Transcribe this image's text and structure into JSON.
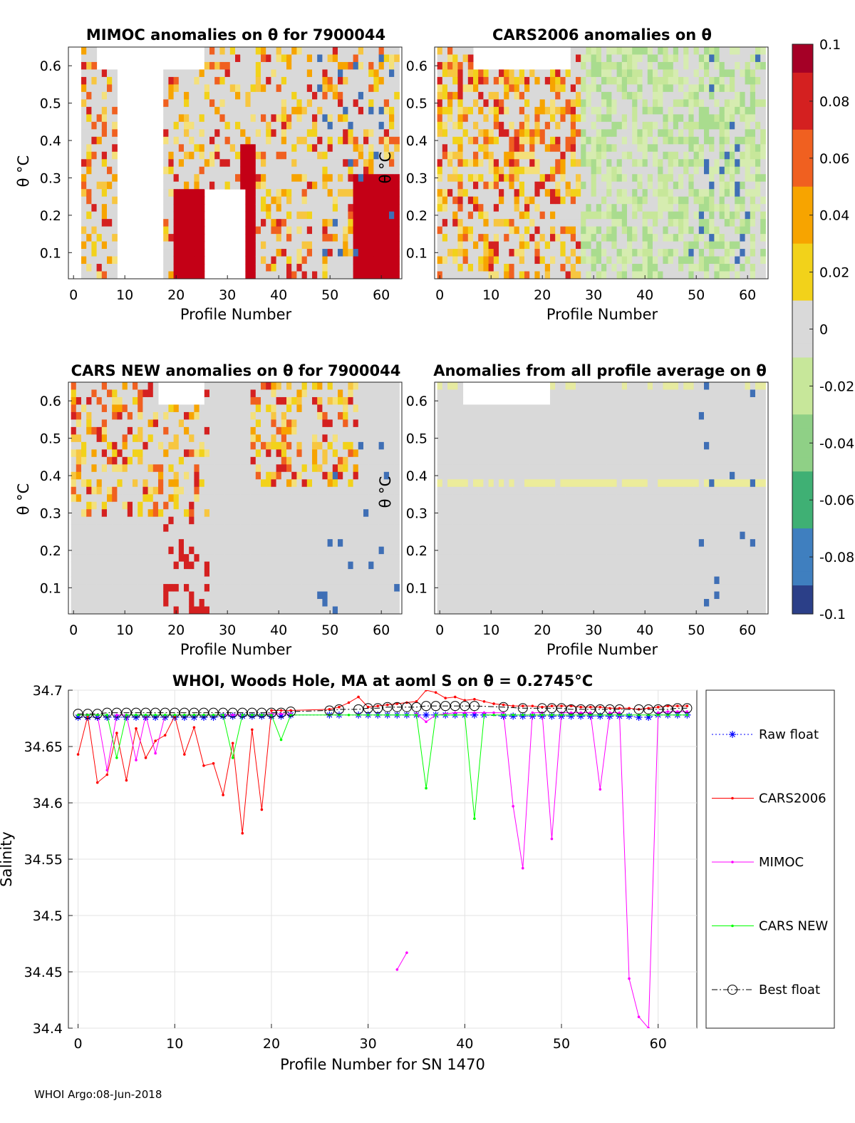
{
  "figure": {
    "footer": "WHOI Argo:08-Jun-2018"
  },
  "colorbar": {
    "ticks": [
      "0.1",
      "0.08",
      "0.06",
      "0.04",
      "0.02",
      "0",
      "-0.02",
      "-0.04",
      "-0.06",
      "-0.08",
      "-0.1"
    ],
    "colors": [
      "#a50026",
      "#d42020",
      "#f06020",
      "#f7a400",
      "#f2d21a",
      "#d9d9d9",
      "#c7e79a",
      "#8fd086",
      "#3fb074",
      "#3f7fbf",
      "#2b3f88"
    ]
  },
  "panels": {
    "mimoc": {
      "title": "MIMOC anomalies on θ  for 7900044",
      "ylabel": "θ °C",
      "xlabel": "Profile Number",
      "xticks": [
        "0",
        "10",
        "20",
        "30",
        "40",
        "50",
        "60"
      ],
      "yticks": [
        "0.6",
        "0.5",
        "0.4",
        "0.3",
        "0.2",
        "0.1"
      ]
    },
    "cars2006": {
      "title": "CARS2006 anomalies on θ",
      "ylabel": "θ °C",
      "xlabel": "Profile Number",
      "xticks": [
        "0",
        "10",
        "20",
        "30",
        "40",
        "50",
        "60"
      ],
      "yticks": [
        "0.6",
        "0.5",
        "0.4",
        "0.3",
        "0.2",
        "0.1"
      ]
    },
    "carsnew": {
      "title": "CARS NEW anomalies on θ for 7900044",
      "ylabel": "θ °C",
      "xlabel": "Profile Number",
      "xticks": [
        "0",
        "10",
        "20",
        "30",
        "40",
        "50",
        "60"
      ],
      "yticks": [
        "0.6",
        "0.5",
        "0.4",
        "0.3",
        "0.2",
        "0.1"
      ]
    },
    "allavg": {
      "title": "Anomalies from all profile average on θ",
      "ylabel": "θ °C",
      "xlabel": "Profile Number",
      "xticks": [
        "0",
        "10",
        "20",
        "30",
        "40",
        "50",
        "60"
      ],
      "yticks": [
        "0.6",
        "0.5",
        "0.4",
        "0.3",
        "0.2",
        "0.1"
      ]
    }
  },
  "chart_data": {
    "type": "line",
    "title": "WHOI, Woods Hole, MA at aoml S on θ = 0.2745°C",
    "xlabel": "Profile Number for SN 1470",
    "ylabel": "Salinity",
    "xlim": [
      -1,
      64
    ],
    "ylim": [
      34.4,
      34.7
    ],
    "xticks": [
      "0",
      "10",
      "20",
      "30",
      "40",
      "50",
      "60"
    ],
    "yticks": [
      "34.7",
      "34.65",
      "34.6",
      "34.55",
      "34.5",
      "34.45",
      "34.4"
    ],
    "series": [
      {
        "name": "Raw float",
        "color": "#0000ff",
        "style": "dotted",
        "marker": "star",
        "x": [
          0,
          1,
          2,
          3,
          4,
          5,
          6,
          7,
          8,
          9,
          10,
          11,
          12,
          13,
          14,
          15,
          16,
          17,
          18,
          19,
          20,
          21,
          22,
          26,
          27,
          29,
          30,
          31,
          32,
          33,
          34,
          35,
          36,
          37,
          38,
          39,
          40,
          41,
          42,
          44,
          45,
          46,
          47,
          48,
          49,
          50,
          51,
          52,
          53,
          54,
          55,
          56,
          57,
          58,
          59,
          60,
          61,
          62,
          63
        ],
        "y": [
          34.676,
          34.676,
          34.676,
          34.676,
          34.676,
          34.676,
          34.676,
          34.676,
          34.676,
          34.676,
          34.676,
          34.676,
          34.676,
          34.676,
          34.676,
          34.677,
          34.677,
          34.677,
          34.677,
          34.677,
          34.677,
          34.677,
          34.678,
          34.678,
          34.678,
          34.678,
          34.678,
          34.678,
          34.678,
          34.678,
          34.678,
          34.678,
          34.678,
          34.678,
          34.678,
          34.678,
          34.678,
          34.678,
          34.678,
          34.677,
          34.677,
          34.677,
          34.677,
          34.677,
          34.677,
          34.677,
          34.677,
          34.677,
          34.677,
          34.677,
          34.677,
          34.677,
          34.677,
          34.676,
          34.676,
          34.678,
          34.678,
          34.678,
          34.678
        ]
      },
      {
        "name": "CARS2006",
        "color": "#ff0000",
        "style": "solid",
        "marker": "dot",
        "x": [
          0,
          1,
          2,
          3,
          4,
          5,
          6,
          7,
          8,
          9,
          10,
          11,
          12,
          13,
          14,
          15,
          16,
          17,
          18,
          19,
          20,
          21,
          22,
          26,
          27,
          28,
          29,
          30,
          31,
          32,
          33,
          34,
          35,
          36,
          37,
          38,
          39,
          40,
          41,
          42,
          43,
          44,
          45,
          46,
          47,
          48,
          49,
          50,
          51,
          52,
          53,
          54,
          55,
          56,
          57,
          58,
          59,
          60,
          61,
          62,
          63
        ],
        "y": [
          34.643,
          34.677,
          34.618,
          34.625,
          34.662,
          34.62,
          34.666,
          34.64,
          34.655,
          34.66,
          34.677,
          34.643,
          34.667,
          34.633,
          34.635,
          34.607,
          34.653,
          34.573,
          34.665,
          34.594,
          34.682,
          34.682,
          34.682,
          34.683,
          34.685,
          34.689,
          34.694,
          34.685,
          34.686,
          34.687,
          34.688,
          34.689,
          34.69,
          34.7,
          34.698,
          34.693,
          34.694,
          34.691,
          34.692,
          34.69,
          34.688,
          34.687,
          34.686,
          34.686,
          34.686,
          34.685,
          34.686,
          34.686,
          34.686,
          34.685,
          34.685,
          34.685,
          34.684,
          34.684,
          34.684,
          34.683,
          34.684,
          34.685,
          34.686,
          34.686,
          34.686
        ]
      },
      {
        "name": "MIMOC",
        "color": "#ff00ff",
        "style": "solid",
        "marker": "dot",
        "x": [
          0,
          1,
          2,
          3,
          4,
          5,
          6,
          7,
          8,
          9,
          10,
          11,
          12,
          13,
          14,
          15,
          16,
          17,
          18,
          19,
          20,
          21,
          22,
          null,
          33,
          34,
          null,
          35,
          36,
          37,
          38,
          39,
          40,
          41,
          42,
          43,
          44,
          45,
          46,
          47,
          48,
          49,
          50,
          51,
          52,
          53,
          54,
          55,
          56,
          57,
          58,
          59,
          60,
          61,
          62,
          63
        ],
        "y": [
          34.678,
          34.678,
          34.678,
          34.629,
          34.678,
          34.678,
          34.638,
          34.678,
          34.644,
          34.678,
          34.678,
          34.678,
          34.678,
          34.678,
          34.678,
          34.678,
          34.678,
          34.678,
          34.678,
          34.678,
          34.679,
          34.679,
          34.679,
          null,
          34.452,
          34.467,
          null,
          34.679,
          34.672,
          34.678,
          34.679,
          34.68,
          34.68,
          34.68,
          34.68,
          34.68,
          34.68,
          34.597,
          34.542,
          34.68,
          34.68,
          34.568,
          34.68,
          34.68,
          34.68,
          34.68,
          34.612,
          34.68,
          34.68,
          34.444,
          34.41,
          34.4,
          34.68,
          34.681,
          34.681,
          34.681
        ]
      },
      {
        "name": "CARS NEW",
        "color": "#00ff00",
        "style": "solid",
        "marker": "dot",
        "x": [
          0,
          1,
          2,
          3,
          4,
          5,
          6,
          7,
          8,
          9,
          10,
          11,
          12,
          13,
          14,
          15,
          16,
          17,
          18,
          19,
          20,
          21,
          22,
          26,
          27,
          28,
          29,
          30,
          31,
          32,
          33,
          34,
          35,
          36,
          37,
          38,
          39,
          40,
          41,
          42,
          43,
          44,
          45,
          46,
          47,
          48,
          49,
          50,
          51,
          52,
          53,
          54,
          55,
          56,
          57,
          58,
          59,
          60,
          61,
          62,
          63
        ],
        "y": [
          34.678,
          34.678,
          34.678,
          34.678,
          34.64,
          34.678,
          34.678,
          34.678,
          34.678,
          34.678,
          34.678,
          34.678,
          34.678,
          34.678,
          34.678,
          34.678,
          34.64,
          34.678,
          34.678,
          34.678,
          34.678,
          34.656,
          34.678,
          34.678,
          34.678,
          34.678,
          34.678,
          34.678,
          34.678,
          34.678,
          34.678,
          34.678,
          34.678,
          34.613,
          34.678,
          34.678,
          34.678,
          34.678,
          34.586,
          34.678,
          34.678,
          34.678,
          34.678,
          34.678,
          34.678,
          34.678,
          34.678,
          34.678,
          34.678,
          34.678,
          34.678,
          34.678,
          34.678,
          34.678,
          34.678,
          34.678,
          34.678,
          34.678,
          34.678,
          34.678,
          34.678
        ]
      },
      {
        "name": "Best float",
        "color": "#000000",
        "style": "dashdot",
        "marker": "circle",
        "x": [
          0,
          1,
          2,
          3,
          4,
          5,
          6,
          7,
          8,
          9,
          10,
          11,
          12,
          13,
          14,
          15,
          16,
          17,
          18,
          19,
          20,
          21,
          22,
          26,
          27,
          29,
          30,
          31,
          32,
          33,
          34,
          35,
          36,
          37,
          38,
          39,
          40,
          41,
          44,
          46,
          48,
          49,
          50,
          51,
          52,
          53,
          54,
          55,
          56,
          58,
          59,
          60,
          61,
          62,
          63
        ],
        "y": [
          34.679,
          34.679,
          34.679,
          34.68,
          34.68,
          34.68,
          34.68,
          34.68,
          34.68,
          34.68,
          34.68,
          34.68,
          34.68,
          34.68,
          34.68,
          34.68,
          34.68,
          34.68,
          34.68,
          34.68,
          34.68,
          34.68,
          34.681,
          34.682,
          34.683,
          34.683,
          34.684,
          34.684,
          34.685,
          34.685,
          34.685,
          34.685,
          34.686,
          34.686,
          34.686,
          34.686,
          34.686,
          34.686,
          34.685,
          34.684,
          34.684,
          34.684,
          34.684,
          34.683,
          34.683,
          34.683,
          34.683,
          34.683,
          34.683,
          34.683,
          34.683,
          34.683,
          34.683,
          34.684,
          34.684
        ]
      }
    ]
  }
}
